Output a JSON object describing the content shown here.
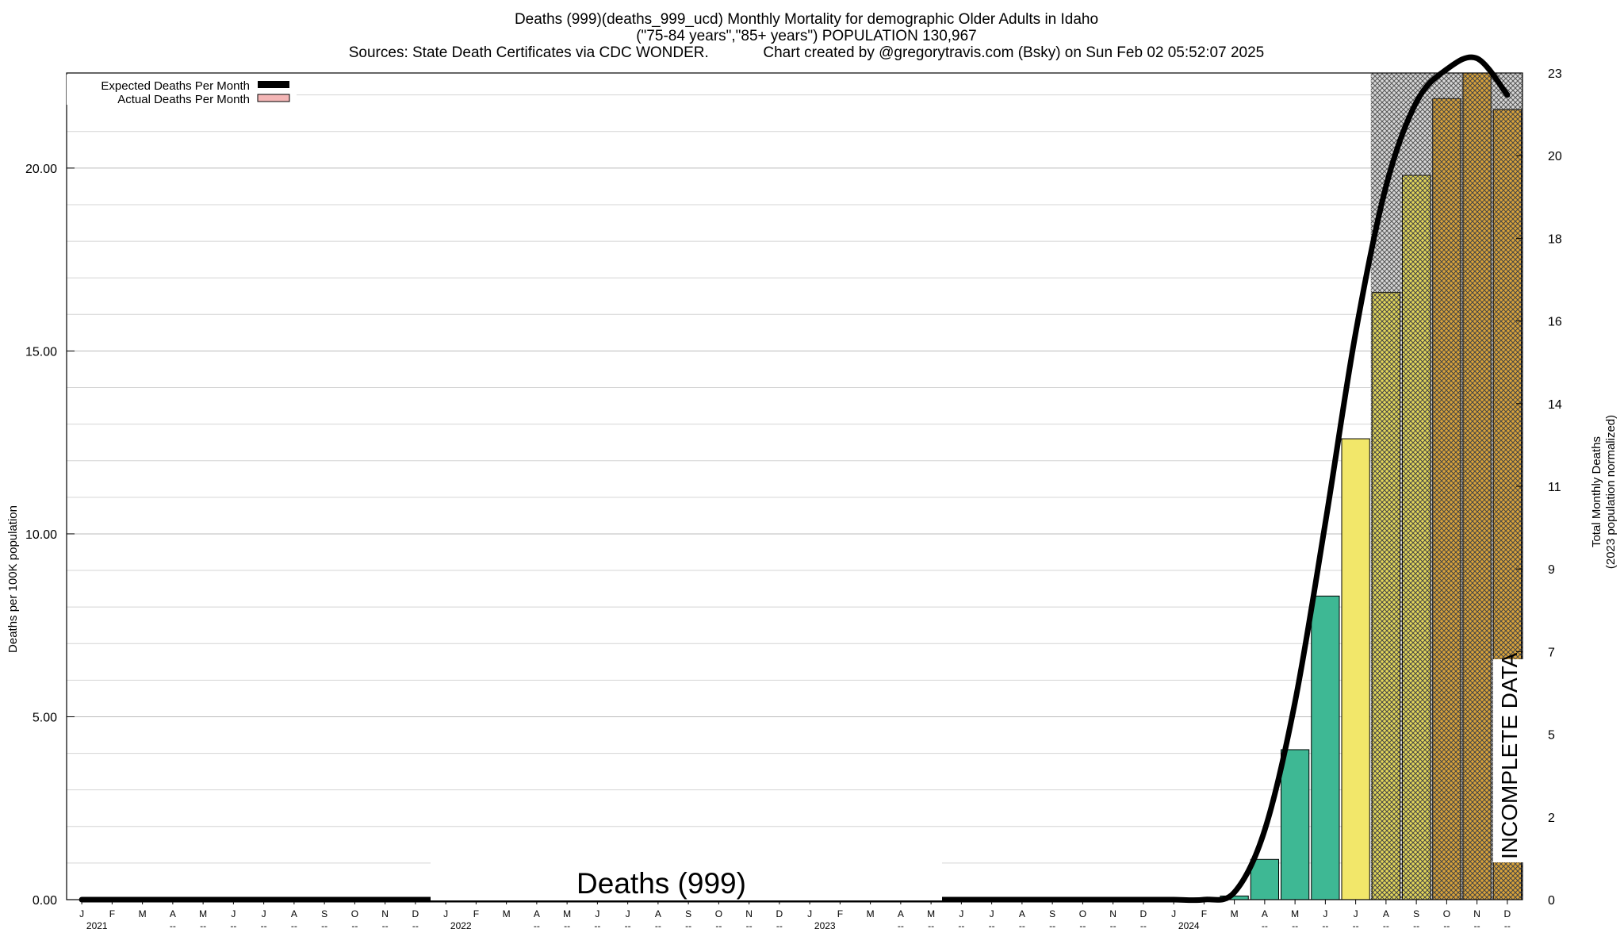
{
  "chart_data": {
    "type": "bar",
    "title_lines": [
      "Deaths (999)(deaths_999_ucd) Monthly Mortality for demographic Older Adults in Idaho",
      "(\"75-84 years\",\"85+ years\") POPULATION 130,967",
      "Sources: State Death Certificates via CDC WONDER.             Chart created by @gregorytravis.com (Bsky) on Sun Feb 02 05:52:07 2025"
    ],
    "ylabel": "Deaths per 100K population",
    "y2label_lines": [
      "Total Monthly Deaths",
      "(2023 population normalized)"
    ],
    "ylim": [
      0,
      22.6
    ],
    "y_ticks": [
      "0.00",
      "5.00",
      "10.00",
      "15.00",
      "20.00"
    ],
    "y2_ticks": [
      "0",
      "2",
      "5",
      "7",
      "9",
      "11",
      "14",
      "16",
      "18",
      "20",
      "23"
    ],
    "month_labels": [
      "J",
      "F",
      "M",
      "A",
      "M",
      "J",
      "J",
      "A",
      "S",
      "O",
      "N",
      "D",
      "J",
      "F",
      "M",
      "A",
      "M",
      "J",
      "J",
      "A",
      "S",
      "O",
      "N",
      "D",
      "J",
      "F",
      "M",
      "A",
      "M",
      "J",
      "J",
      "A",
      "S",
      "O",
      "N",
      "D",
      "J",
      "F",
      "M",
      "A",
      "M",
      "J",
      "J",
      "A",
      "S",
      "O",
      "N",
      "D"
    ],
    "year_labels": [
      "2021",
      "2022",
      "2023",
      "2024"
    ],
    "sub_labels": [
      "",
      "",
      "",
      "--",
      "--",
      "--",
      "--",
      "--",
      "--",
      "--",
      "--",
      "--",
      "",
      "",
      "",
      "--",
      "--",
      "--",
      "--",
      "--",
      "--",
      "--",
      "--",
      "--",
      "",
      "",
      "",
      "--",
      "--",
      "--",
      "--",
      "--",
      "--",
      "--",
      "--",
      "--",
      "",
      "",
      "",
      "--",
      "--",
      "--",
      "--",
      "--",
      "--",
      "--",
      "--",
      "--"
    ],
    "legend": [
      {
        "name": "Expected Deaths Per Month",
        "color": "#000000"
      },
      {
        "name": "Actual Deaths Per Month",
        "color": "#f4b6b6"
      }
    ],
    "values": [
      0,
      0,
      0,
      0,
      0,
      0,
      0,
      0,
      0,
      0,
      0,
      0,
      0,
      0,
      0,
      0,
      0,
      0,
      0,
      0,
      0,
      0,
      0,
      0,
      0,
      0,
      0,
      0,
      0,
      0,
      0,
      0,
      0,
      0,
      0,
      0,
      0,
      0,
      0.1,
      1.1,
      4.1,
      8.3,
      12.6,
      16.6,
      19.8,
      21.9,
      22.6,
      21.6
    ],
    "expected": [
      0,
      0,
      0,
      0,
      0,
      0,
      0,
      0,
      0,
      0,
      0,
      0,
      0,
      0,
      0,
      0,
      0,
      0,
      0,
      0,
      0,
      0,
      0,
      0,
      0,
      0,
      0,
      0,
      0,
      0,
      0,
      0,
      0,
      0,
      0,
      0,
      0,
      0,
      0.2,
      1.9,
      5.4,
      10.3,
      15.5,
      19.5,
      21.8,
      22.7,
      23.0,
      22.0
    ],
    "bar_colors": [
      "#3eb894",
      "#3eb894",
      "#3eb894",
      "#3eb894",
      "#3eb894",
      "#3eb894",
      "#3eb894",
      "#3eb894",
      "#3eb894",
      "#3eb894",
      "#3eb894",
      "#3eb894",
      "#3eb894",
      "#3eb894",
      "#3eb894",
      "#3eb894",
      "#3eb894",
      "#3eb894",
      "#3eb894",
      "#3eb894",
      "#3eb894",
      "#3eb894",
      "#3eb894",
      "#3eb894",
      "#3eb894",
      "#3eb894",
      "#3eb894",
      "#3eb894",
      "#3eb894",
      "#3eb894",
      "#3eb894",
      "#3eb894",
      "#3eb894",
      "#3eb894",
      "#3eb894",
      "#3eb894",
      "#3eb894",
      "#3eb894",
      "#3eb894",
      "#3eb894",
      "#3eb894",
      "#3eb894",
      "#f2e76a",
      "#e3d75a",
      "#e3d75a",
      "#d9a33a",
      "#d9a33a",
      "#d9a33a"
    ],
    "incomplete_months": [
      43,
      44,
      45,
      46,
      47
    ],
    "stamp_text": "Deaths (999)",
    "incomplete_text": "INCOMPLETE DATA",
    "grid": true,
    "legend_position": "top-left"
  }
}
